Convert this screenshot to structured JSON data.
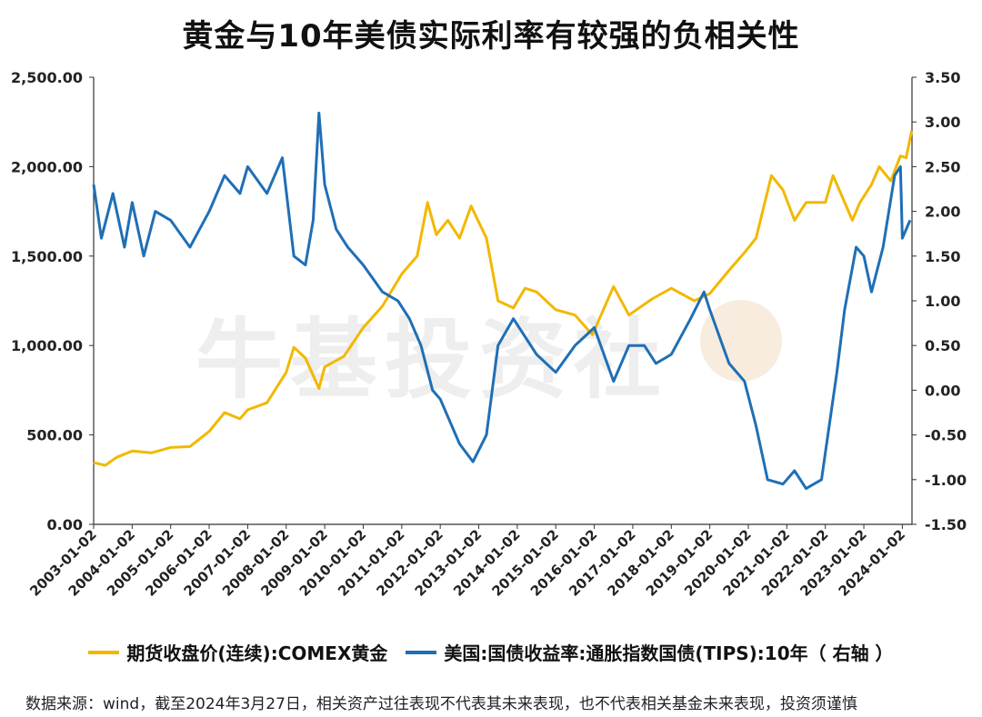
{
  "title": "黄金与10年美债实际利率有较强的负相关性",
  "watermark": "牛基投资社",
  "source_note": "数据来源：wind，截至2024年3月27日，相关资产过往表现不代表其未来表现，也不代表相关基金未来表现，投资须谨慎",
  "legend": {
    "gold_label": "期货收盘价(连续):COMEX黄金",
    "tips_label": "美国:国债收益率:通胀指数国债(TIPS):10年（ 右轴 ）"
  },
  "colors": {
    "gold": "#f2b800",
    "tips": "#1f6fb5",
    "axis": "#333333"
  },
  "chart_data": {
    "type": "line",
    "title": "黄金与10年美债实际利率有较强的负相关性",
    "x_ticks": [
      "2003-01-02",
      "2004-01-02",
      "2005-01-02",
      "2006-01-02",
      "2007-01-02",
      "2008-01-02",
      "2009-01-02",
      "2010-01-02",
      "2011-01-02",
      "2012-01-02",
      "2013-01-02",
      "2014-01-02",
      "2015-01-02",
      "2016-01-02",
      "2017-01-02",
      "2018-01-02",
      "2019-01-02",
      "2020-01-02",
      "2021-01-02",
      "2022-01-02",
      "2023-01-02",
      "2024-01-02"
    ],
    "x_range": [
      2003.0,
      2024.25
    ],
    "y_left": {
      "range": [
        0,
        2500
      ],
      "ticks": [
        "0.00",
        "500.00",
        "1,000.00",
        "1,500.00",
        "2,000.00",
        "2,500.00"
      ]
    },
    "y_right": {
      "range": [
        -1.5,
        3.5
      ],
      "ticks": [
        "-1.50",
        "-1.00",
        "-0.50",
        "0.00",
        "0.50",
        "1.00",
        "1.50",
        "2.00",
        "2.50",
        "3.00",
        "3.50"
      ]
    },
    "series": [
      {
        "name": "期货收盘价(连续):COMEX黄金",
        "axis": "left",
        "x": [
          2003.0,
          2003.3,
          2003.6,
          2004.0,
          2004.5,
          2005.0,
          2005.5,
          2006.0,
          2006.4,
          2006.8,
          2007.0,
          2007.5,
          2008.0,
          2008.2,
          2008.5,
          2008.85,
          2009.0,
          2009.5,
          2010.0,
          2010.5,
          2011.0,
          2011.4,
          2011.67,
          2011.9,
          2012.2,
          2012.5,
          2012.8,
          2013.2,
          2013.5,
          2013.9,
          2014.2,
          2014.5,
          2015.0,
          2015.5,
          2015.95,
          2016.5,
          2016.9,
          2017.5,
          2018.0,
          2018.6,
          2019.0,
          2019.5,
          2019.9,
          2020.2,
          2020.6,
          2020.9,
          2021.2,
          2021.5,
          2022.0,
          2022.2,
          2022.7,
          2022.9,
          2023.2,
          2023.4,
          2023.7,
          2023.95,
          2024.1,
          2024.24
        ],
        "y": [
          345,
          330,
          375,
          410,
          400,
          430,
          435,
          520,
          625,
          590,
          640,
          680,
          850,
          990,
          930,
          760,
          880,
          940,
          1100,
          1220,
          1400,
          1500,
          1800,
          1620,
          1700,
          1600,
          1780,
          1600,
          1250,
          1210,
          1320,
          1300,
          1200,
          1170,
          1060,
          1330,
          1170,
          1260,
          1320,
          1250,
          1290,
          1420,
          1520,
          1600,
          1950,
          1870,
          1700,
          1800,
          1800,
          1950,
          1700,
          1800,
          1900,
          2000,
          1920,
          2060,
          2050,
          2200
        ]
      },
      {
        "name": "美国:国债收益率:通胀指数国债(TIPS):10年",
        "axis": "right",
        "x": [
          2003.0,
          2003.2,
          2003.5,
          2003.8,
          2004.0,
          2004.3,
          2004.6,
          2005.0,
          2005.5,
          2006.0,
          2006.4,
          2006.8,
          2007.0,
          2007.5,
          2007.9,
          2008.2,
          2008.5,
          2008.7,
          2008.85,
          2009.0,
          2009.3,
          2009.6,
          2010.0,
          2010.5,
          2010.9,
          2011.2,
          2011.5,
          2011.8,
          2012.0,
          2012.5,
          2012.85,
          2013.2,
          2013.5,
          2013.9,
          2014.5,
          2015.0,
          2015.5,
          2016.0,
          2016.5,
          2016.9,
          2017.3,
          2017.6,
          2018.0,
          2018.5,
          2018.85,
          2019.0,
          2019.5,
          2019.9,
          2020.2,
          2020.5,
          2020.9,
          2021.2,
          2021.5,
          2021.9,
          2022.0,
          2022.3,
          2022.5,
          2022.8,
          2023.0,
          2023.2,
          2023.5,
          2023.8,
          2023.95,
          2024.0,
          2024.2
        ],
        "y": [
          2.3,
          1.7,
          2.2,
          1.6,
          2.1,
          1.5,
          2.0,
          1.9,
          1.6,
          2.0,
          2.4,
          2.2,
          2.5,
          2.2,
          2.6,
          1.5,
          1.4,
          1.9,
          3.1,
          2.3,
          1.8,
          1.6,
          1.4,
          1.1,
          1.0,
          0.8,
          0.5,
          0.0,
          -0.1,
          -0.6,
          -0.8,
          -0.5,
          0.5,
          0.8,
          0.4,
          0.2,
          0.5,
          0.7,
          0.1,
          0.5,
          0.5,
          0.3,
          0.4,
          0.8,
          1.1,
          0.9,
          0.3,
          0.1,
          -0.4,
          -1.0,
          -1.05,
          -0.9,
          -1.1,
          -1.0,
          -0.7,
          0.2,
          0.9,
          1.6,
          1.5,
          1.1,
          1.6,
          2.4,
          2.5,
          1.7,
          1.9
        ]
      }
    ]
  }
}
